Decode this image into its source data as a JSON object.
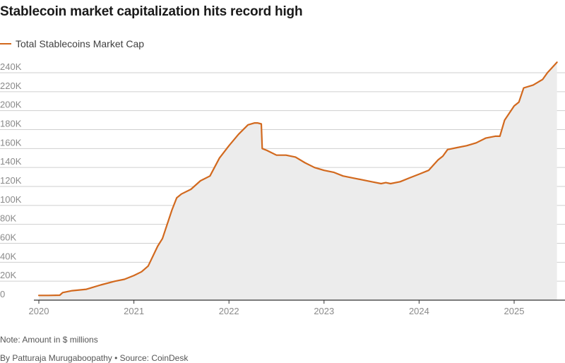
{
  "title": "Stablecoin market capitalization hits record high",
  "note": "Note: Amount in $ millions",
  "byline": "By Patturaja Murugaboopathy • Source: CoinDesk",
  "colors": {
    "line": "#d2691e",
    "area": "#ececec",
    "grid": "#cfcfcf",
    "axis": "#333333",
    "tick_text": "#8a8a8a"
  },
  "chart_data": {
    "type": "area",
    "title": "Stablecoin market capitalization hits record high",
    "xlabel": "",
    "ylabel": "",
    "grid": true,
    "legend_position": "top-left",
    "xlim": [
      2020.0,
      2025.7
    ],
    "ylim": [
      0,
      250000
    ],
    "x_ticks": [
      2020,
      2021,
      2022,
      2023,
      2024,
      2025
    ],
    "x_tick_labels": [
      "2020",
      "2021",
      "2022",
      "2023",
      "2024",
      "2025"
    ],
    "y_ticks": [
      0,
      20000,
      40000,
      60000,
      80000,
      100000,
      120000,
      140000,
      160000,
      180000,
      200000,
      220000,
      240000
    ],
    "y_tick_labels": [
      "0",
      "20K",
      "40K",
      "60K",
      "80K",
      "100K",
      "120K",
      "140K",
      "160K",
      "180K",
      "200K",
      "220K",
      "240K"
    ],
    "series": [
      {
        "name": "Total Stablecoins Market Cap",
        "x": [
          2020.0,
          2020.1,
          2020.22,
          2020.25,
          2020.35,
          2020.5,
          2020.55,
          2020.65,
          2020.8,
          2020.9,
          2021.0,
          2021.08,
          2021.15,
          2021.25,
          2021.3,
          2021.35,
          2021.4,
          2021.45,
          2021.5,
          2021.6,
          2021.7,
          2021.8,
          2021.9,
          2022.0,
          2022.1,
          2022.2,
          2022.27,
          2022.3,
          2022.34,
          2022.35,
          2022.4,
          2022.5,
          2022.6,
          2022.7,
          2022.8,
          2022.9,
          2023.0,
          2023.1,
          2023.2,
          2023.3,
          2023.4,
          2023.5,
          2023.6,
          2023.65,
          2023.7,
          2023.8,
          2023.9,
          2024.0,
          2024.1,
          2024.2,
          2024.25,
          2024.3,
          2024.4,
          2024.5,
          2024.6,
          2024.7,
          2024.8,
          2024.85,
          2024.9,
          2025.0,
          2025.05,
          2025.1,
          2025.2,
          2025.3,
          2025.35,
          2025.45
        ],
        "y": [
          5000,
          5000,
          5200,
          8000,
          10000,
          11500,
          13000,
          16000,
          20000,
          22000,
          26000,
          30000,
          36000,
          57000,
          65000,
          80000,
          95000,
          108000,
          112000,
          117000,
          126000,
          131000,
          150000,
          163000,
          175000,
          185000,
          187000,
          187000,
          186000,
          160000,
          158000,
          153000,
          153000,
          151000,
          145000,
          140000,
          137000,
          135000,
          131000,
          129000,
          127000,
          125000,
          123000,
          124000,
          123000,
          125000,
          129000,
          133000,
          137000,
          148000,
          152000,
          159000,
          161000,
          163000,
          166000,
          171000,
          173000,
          173000,
          190000,
          205000,
          209000,
          224000,
          227000,
          233000,
          240000,
          251000
        ]
      }
    ]
  }
}
